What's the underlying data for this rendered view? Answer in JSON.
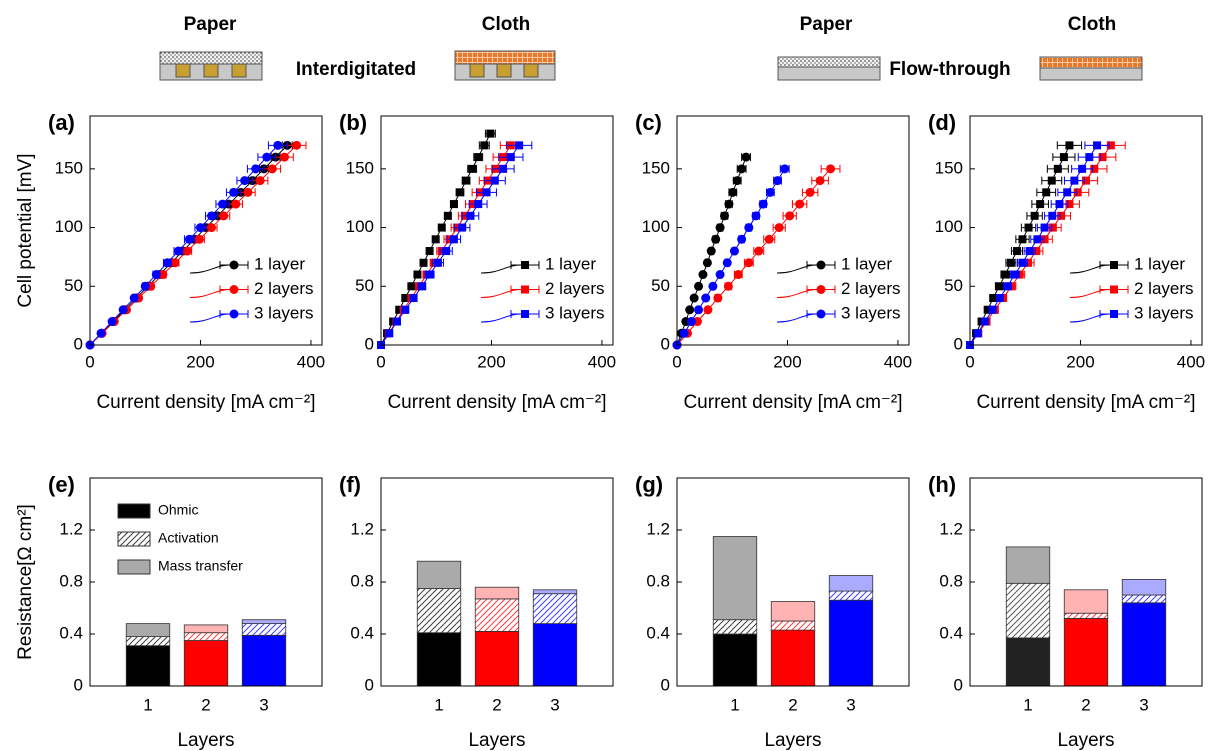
{
  "header": {
    "left": {
      "paper": "Paper",
      "cloth": "Cloth",
      "title": "Interdigitated"
    },
    "right": {
      "paper": "Paper",
      "cloth": "Cloth",
      "title": "Flow-through"
    }
  },
  "chart_data": [
    {
      "type": "line",
      "panel": "(a)",
      "xlabel": "Current density [mA cm⁻²]",
      "ylabel": "Cell potential [mV]",
      "xlim": [
        0,
        420
      ],
      "ylim": [
        0,
        195
      ],
      "xticks": [
        0,
        200,
        400
      ],
      "yticks": [
        0,
        50,
        100,
        150
      ],
      "marker": "circle",
      "legend": "lower right",
      "series": [
        {
          "name": "1 layer",
          "color": "#000000",
          "y": [
            0,
            10,
            20,
            30,
            40,
            50,
            60,
            70,
            80,
            90,
            100,
            110,
            120,
            130,
            140,
            150,
            160,
            170
          ],
          "x": [
            0,
            21,
            42,
            63,
            84,
            105,
            126,
            147,
            168,
            189,
            210,
            231,
            252,
            273,
            294,
            315,
            336,
            357
          ],
          "xerr": [
            0,
            1,
            1,
            2,
            2,
            3,
            3,
            4,
            4,
            5,
            5,
            6,
            6,
            7,
            7,
            8,
            8,
            9
          ]
        },
        {
          "name": "2 layers",
          "color": "#ff0000",
          "y": [
            0,
            10,
            20,
            30,
            40,
            50,
            60,
            70,
            80,
            90,
            100,
            110,
            120,
            130,
            140,
            150,
            160,
            170
          ],
          "x": [
            0,
            22,
            44,
            66,
            88,
            110,
            132,
            154,
            176,
            198,
            220,
            242,
            264,
            286,
            308,
            330,
            352,
            374
          ],
          "xerr": [
            0,
            1,
            2,
            3,
            4,
            5,
            6,
            7,
            8,
            9,
            10,
            11,
            12,
            13,
            14,
            15,
            16,
            17
          ]
        },
        {
          "name": "3 layers",
          "color": "#0000ff",
          "y": [
            0,
            10,
            20,
            30,
            40,
            50,
            60,
            70,
            80,
            90,
            100,
            110,
            120,
            130,
            140,
            150,
            160,
            170
          ],
          "x": [
            0,
            20,
            40,
            60,
            80,
            100,
            120,
            140,
            160,
            180,
            200,
            220,
            240,
            260,
            280,
            300,
            320,
            340
          ],
          "xerr": [
            0,
            1,
            2,
            3,
            4,
            5,
            6,
            7,
            8,
            9,
            10,
            11,
            12,
            13,
            14,
            15,
            16,
            17
          ]
        }
      ]
    },
    {
      "type": "line",
      "panel": "(b)",
      "xlabel": "Current density [mA cm⁻²]",
      "xlim": [
        0,
        420
      ],
      "ylim": [
        0,
        195
      ],
      "xticks": [
        0,
        200,
        400
      ],
      "yticks": [
        0,
        50,
        100,
        150
      ],
      "marker": "square",
      "legend": "lower right",
      "series": [
        {
          "name": "1 layer",
          "color": "#000000",
          "y": [
            0,
            10,
            20,
            30,
            40,
            50,
            60,
            70,
            80,
            90,
            100,
            110,
            120,
            130,
            140,
            150,
            160,
            170,
            180
          ],
          "x": [
            0,
            11,
            22,
            33,
            44,
            55,
            66,
            77,
            88,
            99,
            110,
            121,
            132,
            143,
            154,
            165,
            176,
            187,
            198
          ],
          "xerr": [
            0,
            1,
            1,
            2,
            2,
            3,
            3,
            4,
            4,
            5,
            5,
            6,
            6,
            7,
            7,
            8,
            8,
            9,
            9
          ]
        },
        {
          "name": "2 layers",
          "color": "#ff0000",
          "y": [
            0,
            10,
            20,
            30,
            40,
            50,
            60,
            70,
            80,
            90,
            100,
            110,
            120,
            130,
            140,
            150,
            160,
            170
          ],
          "x": [
            0,
            14,
            28,
            41,
            55,
            69,
            83,
            97,
            110,
            124,
            138,
            152,
            166,
            179,
            193,
            207,
            221,
            235
          ],
          "xerr": [
            0,
            1,
            2,
            3,
            4,
            6,
            7,
            8,
            9,
            10,
            11,
            12,
            13,
            14,
            15,
            17,
            18,
            19
          ]
        },
        {
          "name": "3 layers",
          "color": "#0000ff",
          "y": [
            0,
            10,
            20,
            30,
            40,
            50,
            60,
            70,
            80,
            90,
            100,
            110,
            120,
            130,
            140,
            150,
            160,
            170
          ],
          "x": [
            0,
            15,
            29,
            44,
            59,
            74,
            88,
            103,
            118,
            132,
            147,
            162,
            176,
            191,
            206,
            221,
            235,
            250
          ],
          "xerr": [
            0,
            2,
            3,
            4,
            6,
            7,
            8,
            10,
            11,
            12,
            14,
            15,
            16,
            18,
            19,
            20,
            22,
            23
          ]
        }
      ]
    },
    {
      "type": "line",
      "panel": "(c)",
      "xlabel": "Current density [mA cm⁻²]",
      "xlim": [
        0,
        420
      ],
      "ylim": [
        0,
        195
      ],
      "xticks": [
        0,
        200,
        400
      ],
      "yticks": [
        0,
        50,
        100,
        150
      ],
      "marker": "circle",
      "legend": "lower right",
      "series": [
        {
          "name": "1 layer",
          "color": "#000000",
          "y": [
            0,
            10,
            20,
            30,
            40,
            50,
            60,
            70,
            80,
            90,
            100,
            110,
            120,
            130,
            140,
            150,
            160
          ],
          "x": [
            0,
            8,
            16,
            23,
            31,
            39,
            47,
            55,
            62,
            70,
            78,
            86,
            94,
            101,
            109,
            117,
            125
          ],
          "xerr": [
            0,
            1,
            1,
            2,
            2,
            3,
            3,
            4,
            4,
            5,
            5,
            6,
            6,
            7,
            7,
            8,
            8
          ]
        },
        {
          "name": "2 layers",
          "color": "#ff0000",
          "y": [
            0,
            10,
            20,
            30,
            40,
            50,
            60,
            70,
            80,
            90,
            100,
            110,
            120,
            130,
            140,
            150
          ],
          "x": [
            0,
            19,
            37,
            56,
            74,
            93,
            111,
            130,
            148,
            167,
            185,
            204,
            222,
            241,
            259,
            278
          ],
          "xerr": [
            0,
            1,
            2,
            3,
            5,
            6,
            7,
            8,
            9,
            10,
            11,
            12,
            13,
            14,
            15,
            17
          ]
        },
        {
          "name": "3 layers",
          "color": "#0000ff",
          "y": [
            0,
            10,
            20,
            30,
            40,
            50,
            60,
            70,
            80,
            90,
            100,
            110,
            120,
            130,
            140,
            150
          ],
          "x": [
            0,
            13,
            26,
            39,
            52,
            65,
            78,
            91,
            104,
            117,
            130,
            143,
            156,
            169,
            182,
            195
          ],
          "xerr": [
            0,
            1,
            1,
            2,
            2,
            3,
            3,
            4,
            4,
            5,
            5,
            6,
            6,
            7,
            7,
            8
          ]
        }
      ]
    },
    {
      "type": "line",
      "panel": "(d)",
      "xlabel": "Current density [mA cm⁻²]",
      "xlim": [
        0,
        420
      ],
      "ylim": [
        0,
        195
      ],
      "xticks": [
        0,
        200,
        400
      ],
      "yticks": [
        0,
        50,
        100,
        150
      ],
      "marker": "square",
      "legend": "lower right",
      "series": [
        {
          "name": "1 layer",
          "color": "#000000",
          "y": [
            0,
            10,
            20,
            30,
            40,
            50,
            60,
            70,
            80,
            90,
            100,
            110,
            120,
            130,
            140,
            150,
            160,
            170
          ],
          "x": [
            0,
            11,
            21,
            32,
            42,
            53,
            64,
            74,
            85,
            95,
            106,
            117,
            127,
            138,
            148,
            159,
            170,
            180
          ],
          "xerr": [
            0,
            2,
            3,
            4,
            5,
            7,
            8,
            9,
            10,
            12,
            13,
            14,
            15,
            17,
            18,
            19,
            20,
            22
          ]
        },
        {
          "name": "2 layers",
          "color": "#ff0000",
          "y": [
            0,
            10,
            20,
            30,
            40,
            50,
            60,
            70,
            80,
            90,
            100,
            110,
            120,
            130,
            140,
            150,
            160,
            170
          ],
          "x": [
            0,
            15,
            30,
            45,
            60,
            75,
            90,
            105,
            120,
            135,
            150,
            165,
            180,
            195,
            210,
            225,
            240,
            255
          ],
          "xerr": [
            0,
            2,
            3,
            5,
            6,
            8,
            9,
            11,
            12,
            14,
            15,
            17,
            18,
            20,
            21,
            23,
            24,
            26
          ]
        },
        {
          "name": "3 layers",
          "color": "#0000ff",
          "y": [
            0,
            10,
            20,
            30,
            40,
            50,
            60,
            70,
            80,
            90,
            100,
            110,
            120,
            130,
            140,
            150,
            160,
            170
          ],
          "x": [
            0,
            14,
            27,
            41,
            54,
            68,
            81,
            95,
            108,
            122,
            135,
            149,
            162,
            176,
            189,
            203,
            216,
            230
          ],
          "xerr": [
            0,
            2,
            3,
            4,
            5,
            7,
            8,
            9,
            10,
            12,
            13,
            14,
            15,
            17,
            18,
            19,
            20,
            22
          ]
        }
      ]
    },
    {
      "type": "bar",
      "panel": "(e)",
      "xlabel": "Layers",
      "ylabel": "Resistance[Ω cm²]",
      "categories": [
        "1",
        "2",
        "3"
      ],
      "xlim": [
        0,
        4
      ],
      "ylim": [
        0,
        1.6
      ],
      "yticks": [
        0,
        0.4,
        0.8,
        1.2
      ],
      "colors": [
        "#000000",
        "#ff0000",
        "#0000ff"
      ],
      "light_colors": [
        "#aaaaaa",
        "#ffb3b3",
        "#aaaaff"
      ],
      "legend": "upper left",
      "series": [
        {
          "name": "Ohmic",
          "style": "solid",
          "values": [
            0.31,
            0.35,
            0.39
          ]
        },
        {
          "name": "Activation",
          "style": "hatch",
          "values": [
            0.07,
            0.06,
            0.09
          ]
        },
        {
          "name": "Mass transfer",
          "style": "light",
          "values": [
            0.1,
            0.06,
            0.03
          ]
        }
      ]
    },
    {
      "type": "bar",
      "panel": "(f)",
      "xlabel": "Layers",
      "categories": [
        "1",
        "2",
        "3"
      ],
      "xlim": [
        0,
        4
      ],
      "ylim": [
        0,
        1.6
      ],
      "yticks": [
        0,
        0.4,
        0.8,
        1.2
      ],
      "colors": [
        "#000000",
        "#ff0000",
        "#0000ff"
      ],
      "light_colors": [
        "#aaaaaa",
        "#ffb3b3",
        "#aaaaff"
      ],
      "series": [
        {
          "style": "solid",
          "values": [
            0.41,
            0.42,
            0.48
          ]
        },
        {
          "style": "hatch",
          "values": [
            0.34,
            0.25,
            0.23
          ]
        },
        {
          "style": "light",
          "values": [
            0.21,
            0.09,
            0.03
          ]
        }
      ]
    },
    {
      "type": "bar",
      "panel": "(g)",
      "xlabel": "Layers",
      "categories": [
        "1",
        "2",
        "3"
      ],
      "xlim": [
        0,
        4
      ],
      "ylim": [
        0,
        1.6
      ],
      "yticks": [
        0,
        0.4,
        0.8,
        1.2
      ],
      "colors": [
        "#000000",
        "#ff0000",
        "#0000ff"
      ],
      "light_colors": [
        "#aaaaaa",
        "#ffb3b3",
        "#aaaaff"
      ],
      "series": [
        {
          "style": "solid",
          "values": [
            0.4,
            0.43,
            0.66
          ]
        },
        {
          "style": "hatch",
          "values": [
            0.11,
            0.07,
            0.07
          ]
        },
        {
          "style": "light",
          "values": [
            0.64,
            0.15,
            0.12
          ]
        }
      ]
    },
    {
      "type": "bar",
      "panel": "(h)",
      "xlabel": "Layers",
      "categories": [
        "1",
        "2",
        "3"
      ],
      "xlim": [
        0,
        4
      ],
      "ylim": [
        0,
        1.6
      ],
      "yticks": [
        0,
        0.4,
        0.8,
        1.2
      ],
      "colors": [
        "#222222",
        "#ff0000",
        "#0000ff"
      ],
      "light_colors": [
        "#aaaaaa",
        "#ffb3b3",
        "#aaaaff"
      ],
      "series": [
        {
          "style": "solid",
          "values": [
            0.37,
            0.52,
            0.64
          ]
        },
        {
          "style": "hatch",
          "values": [
            0.42,
            0.04,
            0.06
          ]
        },
        {
          "style": "light",
          "values": [
            0.28,
            0.18,
            0.12
          ]
        }
      ]
    }
  ]
}
